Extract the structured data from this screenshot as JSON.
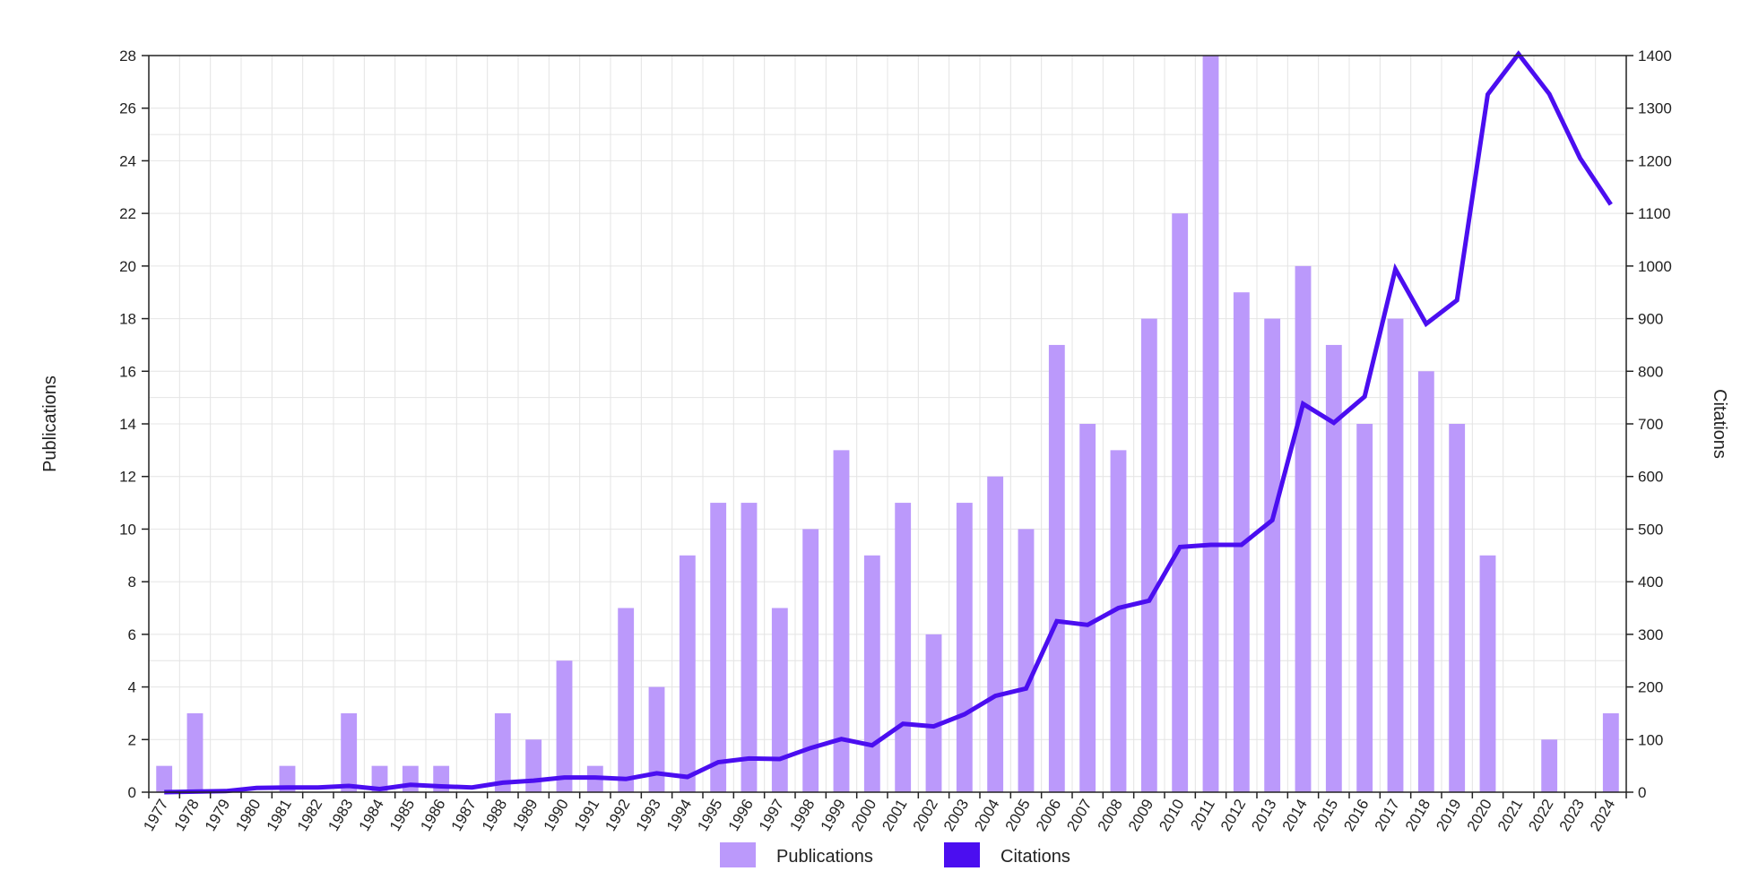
{
  "chart_data": {
    "type": "bar",
    "categories": [
      "1977",
      "1978",
      "1979",
      "1980",
      "1981",
      "1982",
      "1983",
      "1984",
      "1985",
      "1986",
      "1987",
      "1988",
      "1989",
      "1990",
      "1991",
      "1992",
      "1993",
      "1994",
      "1995",
      "1996",
      "1997",
      "1998",
      "1999",
      "2000",
      "2001",
      "2002",
      "2003",
      "2004",
      "2005",
      "2006",
      "2007",
      "2008",
      "2009",
      "2010",
      "2011",
      "2012",
      "2013",
      "2014",
      "2015",
      "2016",
      "2017",
      "2018",
      "2019",
      "2020",
      "2021",
      "2022",
      "2023",
      "2024"
    ],
    "series": [
      {
        "name": "Publications",
        "type": "bar",
        "axis": "left",
        "color": "#bb99fb",
        "values": [
          1,
          3,
          0,
          0,
          1,
          0,
          3,
          1,
          1,
          1,
          0,
          3,
          2,
          5,
          1,
          7,
          4,
          9,
          11,
          11,
          7,
          10,
          13,
          9,
          11,
          6,
          11,
          12,
          10,
          17,
          14,
          13,
          18,
          22,
          28,
          19,
          18,
          20,
          17,
          14,
          18,
          16,
          14,
          9,
          0,
          2,
          0,
          3
        ]
      },
      {
        "name": "Citations",
        "type": "line",
        "axis": "right",
        "color": "#4b0ef0",
        "values": [
          0,
          1,
          2,
          8,
          9,
          9,
          12,
          6,
          14,
          11,
          9,
          18,
          22,
          28,
          28,
          25,
          36,
          29,
          57,
          64,
          63,
          84,
          101,
          89,
          130,
          125,
          148,
          183,
          197,
          325,
          318,
          350,
          364,
          466,
          470,
          470,
          517,
          738,
          702,
          752,
          994,
          890,
          935,
          1326,
          1403,
          1327,
          1205,
          1117
        ]
      }
    ],
    "xlabel": "",
    "ylabel_left": "Publications",
    "ylabel_right": "Citations",
    "ylim_left": [
      0,
      28
    ],
    "ylim_right": [
      0,
      1400
    ],
    "yticks_left": [
      "0",
      "2",
      "4",
      "6",
      "8",
      "10",
      "12",
      "14",
      "16",
      "18",
      "20",
      "22",
      "24",
      "26",
      "28"
    ],
    "yticks_right": [
      "0",
      "100",
      "200",
      "300",
      "400",
      "500",
      "600",
      "700",
      "800",
      "900",
      "1000",
      "1100",
      "1200",
      "1300",
      "1400"
    ],
    "grid": true,
    "legend_position": "bottom-center",
    "legend": [
      {
        "label": "Publications",
        "color": "#bb99fb"
      },
      {
        "label": "Citations",
        "color": "#4b0ef0"
      }
    ]
  }
}
